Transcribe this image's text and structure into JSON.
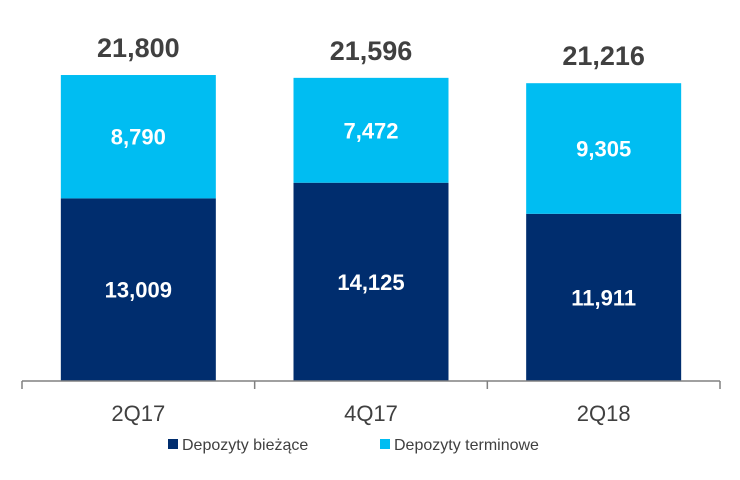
{
  "chart_data": {
    "type": "bar",
    "stacked": true,
    "categories": [
      "2Q17",
      "4Q17",
      "2Q18"
    ],
    "series": [
      {
        "name": "Depozyty bieżące",
        "values": [
          13009,
          14125,
          11911
        ],
        "color": "#002D6E"
      },
      {
        "name": "Depozyty terminowe",
        "values": [
          8790,
          7472,
          9305
        ],
        "color": "#00BDF2"
      }
    ],
    "totals": [
      21800,
      21596,
      21216
    ],
    "value_labels": {
      "Depozyty bieżące": [
        "13,009",
        "14,125",
        "11,911"
      ],
      "Depozyty terminowe": [
        "8,790",
        "7,472",
        "9,305"
      ],
      "totals": [
        "21,800",
        "21,596",
        "21,216"
      ]
    },
    "ylim": [
      0,
      25000
    ],
    "grid": false,
    "legend": "bottom",
    "axis_color": "#808080"
  }
}
